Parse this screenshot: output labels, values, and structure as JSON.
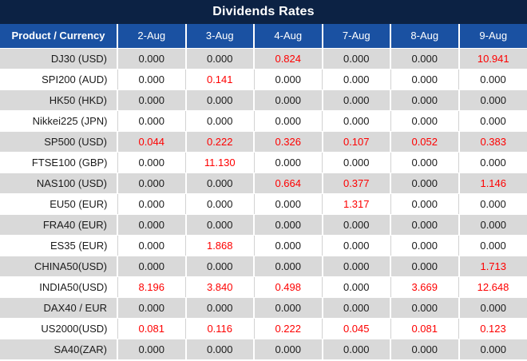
{
  "title": "Dividends Rates",
  "columns": [
    "Product / Currency",
    "2-Aug",
    "3-Aug",
    "4-Aug",
    "7-Aug",
    "8-Aug",
    "9-Aug"
  ],
  "rows": [
    {
      "product": "DJ30 (USD)",
      "values": [
        "0.000",
        "0.000",
        "0.824",
        "0.000",
        "0.000",
        "10.941"
      ]
    },
    {
      "product": "SPI200 (AUD)",
      "values": [
        "0.000",
        "0.141",
        "0.000",
        "0.000",
        "0.000",
        "0.000"
      ]
    },
    {
      "product": "HK50 (HKD)",
      "values": [
        "0.000",
        "0.000",
        "0.000",
        "0.000",
        "0.000",
        "0.000"
      ]
    },
    {
      "product": "Nikkei225 (JPN)",
      "values": [
        "0.000",
        "0.000",
        "0.000",
        "0.000",
        "0.000",
        "0.000"
      ]
    },
    {
      "product": "SP500 (USD)",
      "values": [
        "0.044",
        "0.222",
        "0.326",
        "0.107",
        "0.052",
        "0.383"
      ]
    },
    {
      "product": "FTSE100 (GBP)",
      "values": [
        "0.000",
        "11.130",
        "0.000",
        "0.000",
        "0.000",
        "0.000"
      ]
    },
    {
      "product": "NAS100 (USD)",
      "values": [
        "0.000",
        "0.000",
        "0.664",
        "0.377",
        "0.000",
        "1.146"
      ]
    },
    {
      "product": "EU50 (EUR)",
      "values": [
        "0.000",
        "0.000",
        "0.000",
        "1.317",
        "0.000",
        "0.000"
      ]
    },
    {
      "product": "FRA40 (EUR)",
      "values": [
        "0.000",
        "0.000",
        "0.000",
        "0.000",
        "0.000",
        "0.000"
      ]
    },
    {
      "product": "ES35 (EUR)",
      "values": [
        "0.000",
        "1.868",
        "0.000",
        "0.000",
        "0.000",
        "0.000"
      ]
    },
    {
      "product": "CHINA50(USD)",
      "values": [
        "0.000",
        "0.000",
        "0.000",
        "0.000",
        "0.000",
        "1.713"
      ]
    },
    {
      "product": "INDIA50(USD)",
      "values": [
        "8.196",
        "3.840",
        "0.498",
        "0.000",
        "3.669",
        "12.648"
      ]
    },
    {
      "product": "DAX40 / EUR",
      "values": [
        "0.000",
        "0.000",
        "0.000",
        "0.000",
        "0.000",
        "0.000"
      ]
    },
    {
      "product": "US2000(USD)",
      "values": [
        "0.081",
        "0.116",
        "0.222",
        "0.045",
        "0.081",
        "0.123"
      ]
    },
    {
      "product": "SA40(ZAR)",
      "values": [
        "0.000",
        "0.000",
        "0.000",
        "0.000",
        "0.000",
        "0.000"
      ]
    }
  ],
  "colors": {
    "title_bg": "#0C2244",
    "header_bg": "#1A51A2",
    "row_alt_bg": "#D9D9D9",
    "row_bg": "#FFFFFF",
    "value_text": "#1B1B1B",
    "nonzero_value_text": "#FE0000",
    "header_text": "#FFFFFF"
  }
}
